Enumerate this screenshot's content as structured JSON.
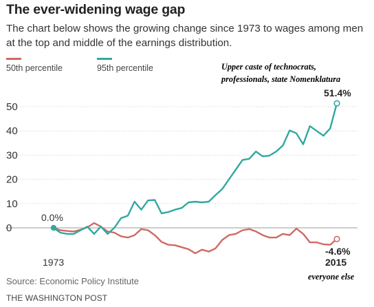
{
  "header": {
    "title": "The ever-widening wage gap",
    "subtitle": "The chart below shows the growing change since 1973 to wages among men at the top and middle of the earnings distribution."
  },
  "annotations": {
    "top": [
      "Upper caste of technocrats,",
      "professionals, state Nomenklatura"
    ],
    "bottom": "everyone else"
  },
  "footer": {
    "source": "Source: Economic Policy Institute",
    "brand": "THE WASHINGTON POST"
  },
  "colors": {
    "p50": "#cd6a63",
    "p95": "#30a8a0",
    "grid": "#d9d9d9",
    "baseline": "#9a9a9a"
  },
  "chart_data": {
    "type": "line",
    "x": [
      1973,
      1974,
      1975,
      1976,
      1977,
      1978,
      1979,
      1980,
      1981,
      1982,
      1983,
      1984,
      1985,
      1986,
      1987,
      1988,
      1989,
      1990,
      1991,
      1992,
      1993,
      1994,
      1995,
      1996,
      1997,
      1998,
      1999,
      2000,
      2001,
      2002,
      2003,
      2004,
      2005,
      2006,
      2007,
      2008,
      2009,
      2010,
      2011,
      2012,
      2013,
      2014,
      2015
    ],
    "series": [
      {
        "name": "50th percentile",
        "color_key": "p50",
        "values": [
          0.0,
          -1.0,
          -1.3,
          -1.5,
          -0.8,
          0.2,
          2.0,
          0.5,
          -1.5,
          -2.0,
          -3.5,
          -4.0,
          -3.0,
          -0.5,
          -1.0,
          -3.0,
          -5.8,
          -7.0,
          -7.2,
          -8.0,
          -8.8,
          -10.5,
          -9.0,
          -9.8,
          -8.5,
          -5.0,
          -3.0,
          -2.5,
          -1.0,
          -0.5,
          -1.5,
          -3.0,
          -4.0,
          -4.0,
          -2.5,
          -3.0,
          -0.3,
          -2.5,
          -6.0,
          -6.0,
          -6.8,
          -7.0,
          -4.6
        ]
      },
      {
        "name": "95th percentile",
        "color_key": "p95",
        "values": [
          0.0,
          -2.0,
          -2.5,
          -2.5,
          -1.0,
          0.5,
          -2.5,
          0.5,
          -2.5,
          0.0,
          4.0,
          5.0,
          10.8,
          7.5,
          11.3,
          11.5,
          6.0,
          6.5,
          7.5,
          8.2,
          10.5,
          10.8,
          10.5,
          10.8,
          13.5,
          16.0,
          20.0,
          24.0,
          28.0,
          28.5,
          31.5,
          29.5,
          29.8,
          31.5,
          34.0,
          40.2,
          39.0,
          34.5,
          42.0,
          40.0,
          38.0,
          41.0,
          51.4
        ]
      }
    ],
    "y_ticks": [
      0,
      10,
      20,
      30,
      40,
      50
    ],
    "ylim": [
      -12,
      53
    ],
    "xlim": [
      1973,
      2015
    ],
    "x_tick_label": "1973",
    "start_label": "0.0%",
    "end_labels": {
      "p95": "51.4%",
      "p50": "-4.6%",
      "year": "2015"
    },
    "grid": true,
    "legend": "top-left"
  }
}
